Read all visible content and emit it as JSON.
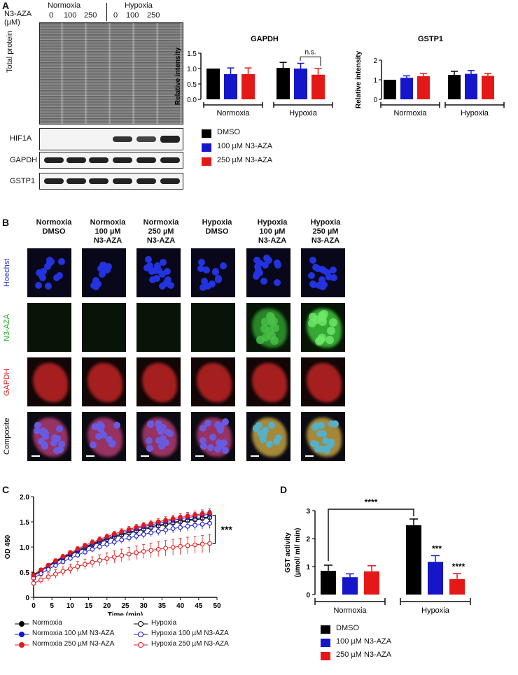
{
  "panel_labels": {
    "a": "A",
    "b": "B",
    "c": "C",
    "d": "D"
  },
  "panelA": {
    "condition_headers": [
      "Normoxia",
      "Hypoxia"
    ],
    "dose_row_label_line1": "N3-AZA",
    "dose_row_label_line2": "(µM)",
    "doses": [
      "0",
      "100",
      "250",
      "0",
      "100",
      "250"
    ],
    "blot_labels": {
      "total_protein": "Total protein",
      "hif1a": "HIF1A",
      "gapdh": "GAPDH",
      "gstp1": "GSTP1"
    },
    "legend": [
      {
        "label": "DMSO",
        "color": "#000000"
      },
      {
        "label": "100 µM N3-AZA",
        "color": "#1515c9"
      },
      {
        "label": "250 µM N3-AZA",
        "color": "#e51818"
      }
    ]
  },
  "chart_data": [
    {
      "type": "bar",
      "title": "GAPDH",
      "ylabel": "Relative intensity",
      "ylim": [
        0,
        1.5
      ],
      "yticks": [
        "0.0",
        "0.5",
        "1.0",
        "1.5"
      ],
      "groups": [
        "Normoxia",
        "Hypoxia"
      ],
      "annotation": "n.s.",
      "series": [
        {
          "name": "DMSO",
          "color": "#000000",
          "values": [
            1.0,
            1.02
          ],
          "err": [
            0,
            0.18
          ]
        },
        {
          "name": "100 µM N3-AZA",
          "color": "#1515c9",
          "values": [
            0.82,
            1.0
          ],
          "err": [
            0.2,
            0.17
          ]
        },
        {
          "name": "250 µM N3-AZA",
          "color": "#e51818",
          "values": [
            0.82,
            0.8
          ],
          "err": [
            0.2,
            0.2
          ]
        }
      ]
    },
    {
      "type": "bar",
      "title": "GSTP1",
      "ylabel": "Relative intensity",
      "ylim": [
        0,
        2
      ],
      "yticks": [
        "0",
        "1",
        "2"
      ],
      "groups": [
        "Normoxia",
        "Hypoxia"
      ],
      "series": [
        {
          "name": "DMSO",
          "color": "#000000",
          "values": [
            1.0,
            1.25
          ],
          "err": [
            0,
            0.18
          ]
        },
        {
          "name": "100 µM N3-AZA",
          "color": "#1515c9",
          "values": [
            1.1,
            1.3
          ],
          "err": [
            0.1,
            0.17
          ]
        },
        {
          "name": "250 µM N3-AZA",
          "color": "#e51818",
          "values": [
            1.18,
            1.2
          ],
          "err": [
            0.14,
            0.12
          ]
        }
      ]
    },
    {
      "type": "line",
      "ylabel": "OD 450",
      "xlabel": "Time (min)",
      "xlim": [
        0,
        50
      ],
      "ylim": [
        0,
        2.0
      ],
      "xticks": [
        "0",
        "5",
        "10",
        "15",
        "20",
        "25",
        "30",
        "35",
        "40",
        "45",
        "50"
      ],
      "yticks": [
        "0",
        "0.5",
        "1.0",
        "1.5",
        "2.0"
      ],
      "annotation": "***",
      "series": [
        {
          "name": "Normoxia",
          "color": "#000000",
          "filled": true,
          "start": 0.45,
          "end": 1.6,
          "err": 0.08
        },
        {
          "name": "Hypoxia",
          "color": "#000000",
          "filled": false,
          "start": 0.43,
          "end": 1.58,
          "err": 0.08
        },
        {
          "name": "Normoxia 100 µM N3-AZA",
          "color": "#1515c9",
          "filled": true,
          "start": 0.42,
          "end": 1.65,
          "err": 0.08
        },
        {
          "name": "Hypoxia 100 µM N3-AZA",
          "color": "#1515c9",
          "filled": false,
          "start": 0.38,
          "end": 1.47,
          "err": 0.1
        },
        {
          "name": "Normoxia 250 µM N3-AZA",
          "color": "#e51818",
          "filled": true,
          "start": 0.44,
          "end": 1.68,
          "err": 0.08
        },
        {
          "name": "Hypoxia 250 µM N3-AZA",
          "color": "#e51818",
          "filled": false,
          "start": 0.28,
          "end": 1.07,
          "err": 0.18
        }
      ]
    },
    {
      "type": "bar",
      "ylabel": "GST activity",
      "ylabel2": "(µmol/ ml/ min)",
      "ylim": [
        0,
        3
      ],
      "yticks": [
        "0",
        "1",
        "2",
        "3"
      ],
      "groups": [
        "Normoxia",
        "Hypoxia"
      ],
      "top_annotation": "****",
      "series": [
        {
          "name": "DMSO",
          "color": "#000000",
          "values": [
            0.85,
            2.48
          ],
          "err": [
            0.2,
            0.22
          ],
          "sig": [
            "",
            ""
          ]
        },
        {
          "name": "100 µM N3-AZA",
          "color": "#1515c9",
          "values": [
            0.62,
            1.17
          ],
          "err": [
            0.12,
            0.22
          ],
          "sig": [
            "",
            "***"
          ]
        },
        {
          "name": "250 µM N3-AZA",
          "color": "#e51818",
          "values": [
            0.83,
            0.55
          ],
          "err": [
            0.2,
            0.2
          ],
          "sig": [
            "",
            "****"
          ]
        }
      ]
    }
  ],
  "panelB": {
    "column_headers": [
      [
        "Normoxia",
        "DMSO",
        ""
      ],
      [
        "Normoxia",
        "100 µM",
        "N3-AZA"
      ],
      [
        "Normoxia",
        "250 µM",
        "N3-AZA"
      ],
      [
        "Hypoxia",
        "DMSO",
        ""
      ],
      [
        "Hypoxia",
        "100 µM",
        "N3-AZA"
      ],
      [
        "Hypoxia",
        "250 µM",
        "N3-AZA"
      ]
    ],
    "row_labels": [
      {
        "label": "Hoechst",
        "color": "#2233cc"
      },
      {
        "label": "N3-AZA",
        "color": "#22aa22"
      },
      {
        "label": "GAPDH",
        "color": "#dd2222"
      },
      {
        "label": "Composite",
        "color": "#111111"
      }
    ]
  },
  "panelC_legend": [
    "Normoxia",
    "Hypoxia",
    "Normoxia 100 µM N3-AZA",
    "Hypoxia 100 µM N3-AZA",
    "Normoxia 250 µM N3-AZA",
    "Hypoxia 250 µM N3-AZA"
  ],
  "panelD_legend": [
    "DMSO",
    "100 µM N3-AZA",
    "250 µM N3-AZA"
  ]
}
